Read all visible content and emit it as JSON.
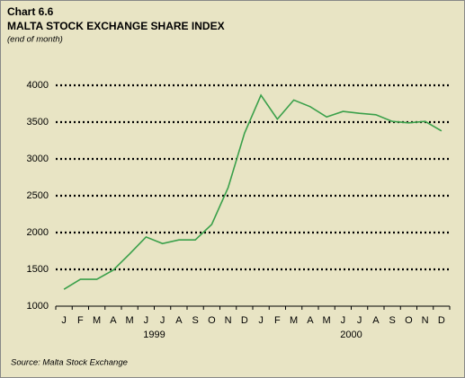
{
  "chart_data": {
    "type": "line",
    "label": "Chart 6.6",
    "title": "MALTA STOCK EXCHANGE SHARE INDEX",
    "subtitle": "(end of month)",
    "source": "Source: Malta Stock Exchange",
    "categories": [
      "J",
      "F",
      "M",
      "A",
      "M",
      "J",
      "J",
      "A",
      "S",
      "O",
      "N",
      "D",
      "J",
      "F",
      "M",
      "A",
      "M",
      "J",
      "J",
      "A",
      "S",
      "O",
      "N",
      "D"
    ],
    "year_labels": [
      "1999",
      "2000"
    ],
    "series": [
      {
        "color": "#3aa04a",
        "values": [
          1230,
          1365,
          1365,
          1490,
          1710,
          1940,
          1850,
          1900,
          1900,
          2110,
          2610,
          3350,
          3865,
          3540,
          3800,
          3710,
          3570,
          3645,
          3620,
          3600,
          3510,
          3490,
          3510,
          3380
        ]
      }
    ],
    "ylim": [
      1000,
      4000
    ],
    "yticks": [
      1000,
      1500,
      2000,
      2500,
      3000,
      3500,
      4000
    ],
    "grid": true
  }
}
